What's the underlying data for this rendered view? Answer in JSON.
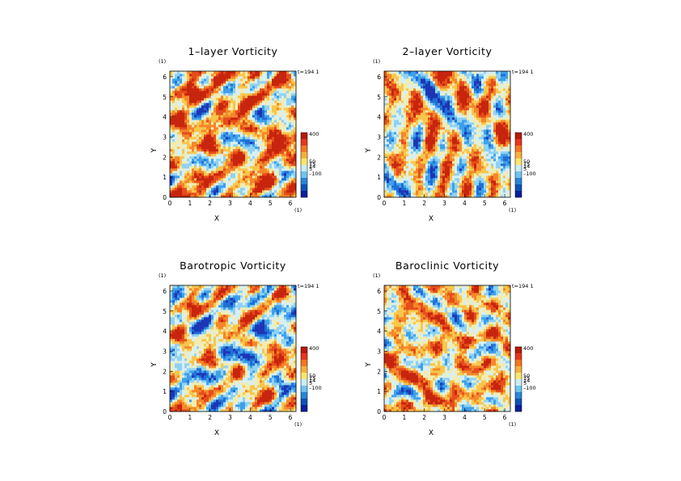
{
  "figure": {
    "panels": [
      {
        "title": "1–layer Vorticity",
        "time_label": "t=194 1",
        "field_seed": 11,
        "field_bias": 0.35
      },
      {
        "title": "2–layer Vorticity",
        "time_label": "t=194 1",
        "field_seed": 27,
        "field_bias": 0.15
      },
      {
        "title": "Barotropic Vorticity",
        "time_label": "t=194 1",
        "field_seed": 11,
        "field_bias": 0.05
      },
      {
        "title": "Baroclinic Vorticity",
        "time_label": "t=194 1",
        "field_seed": 43,
        "field_bias": 0.25
      }
    ]
  },
  "chart_data": {
    "type": "heatmap",
    "xlabel": "X",
    "ylabel": "Y",
    "axis_unit_label": "(1)",
    "xlim": [
      0,
      6.28
    ],
    "ylim": [
      0,
      6.28
    ],
    "x_ticks": [
      "0",
      "1",
      "2",
      "3",
      "4",
      "5",
      "6"
    ],
    "y_ticks": [
      "0",
      "1",
      "2",
      "3",
      "4",
      "5",
      "6"
    ],
    "colorbar": {
      "labels": [
        "400",
        "50",
        "15",
        "14",
        "5",
        "–100"
      ],
      "colors": [
        "#b81a0b",
        "#e8361c",
        "#f4761f",
        "#f7b03a",
        "#fbe66a",
        "#c9ecf5",
        "#6ec4ef",
        "#2a86d9",
        "#0c52b8",
        "#0a1f9e"
      ]
    },
    "colormap": [
      "#1d36b5",
      "#1f6fd6",
      "#3fa0ea",
      "#8fd2f3",
      "#d7f0f5",
      "#f3ecb0",
      "#f8c64a",
      "#f4872a",
      "#e64d1c",
      "#c7250e"
    ]
  }
}
